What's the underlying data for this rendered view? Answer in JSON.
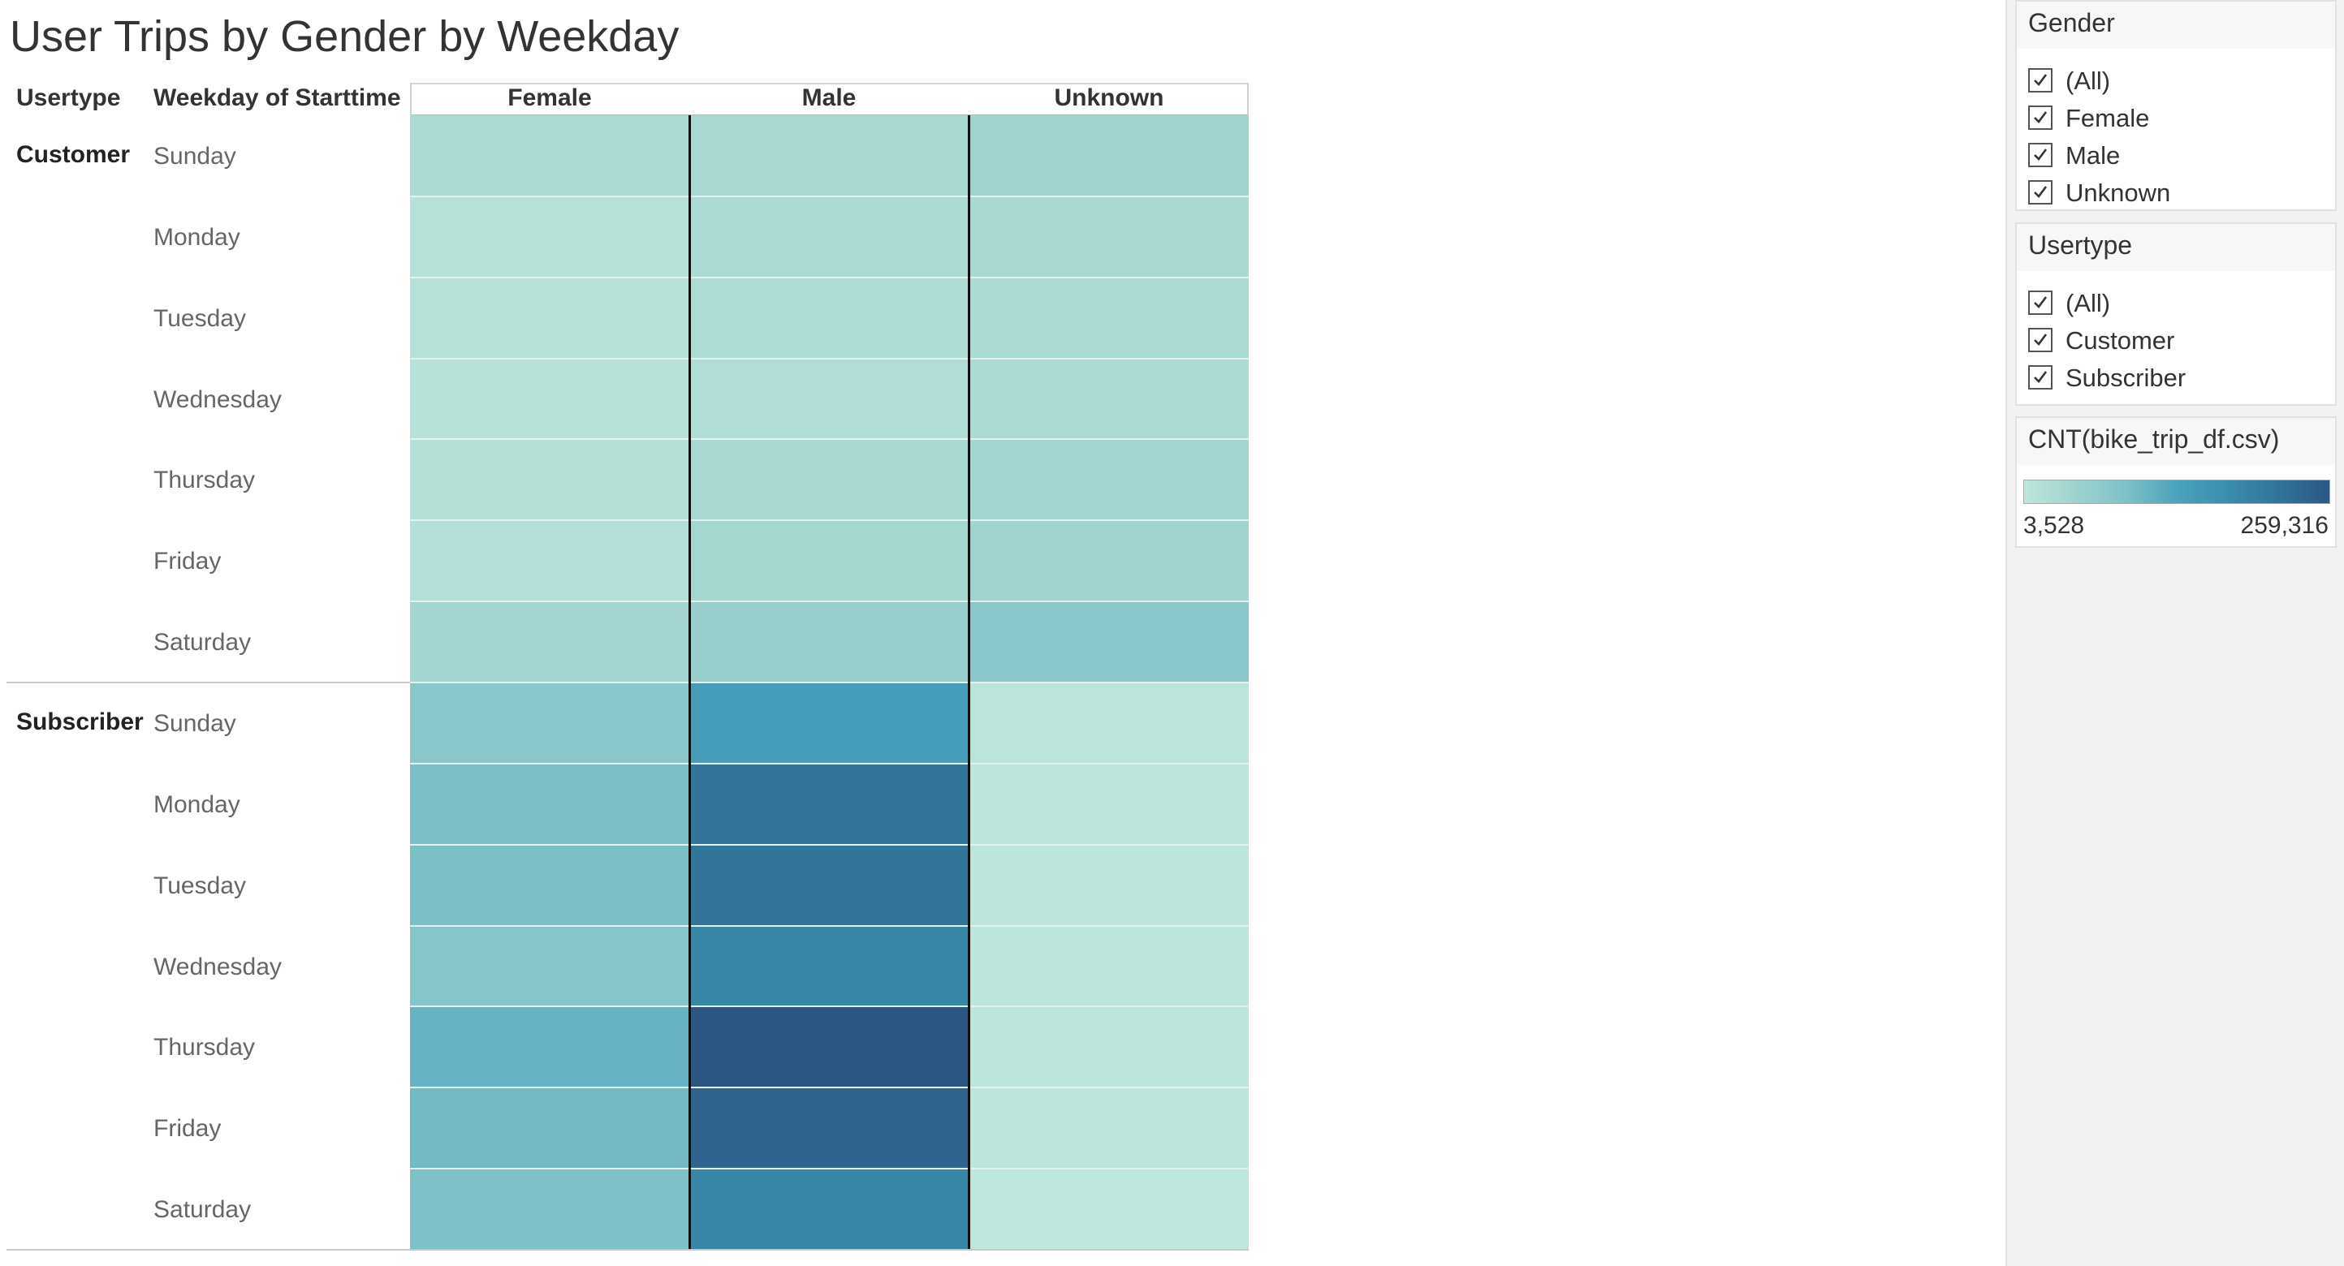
{
  "title": "User Trips by Gender by Weekday",
  "row_headers": {
    "usertype": "Usertype",
    "weekday": "Weekday of Starttime"
  },
  "colors": {
    "scale_min": "#bde6dc",
    "scale_max": "#2b5784",
    "divider_dark": "#111111"
  },
  "chart_data": {
    "type": "heatmap",
    "title": "User Trips by Gender by Weekday",
    "columns": [
      "Female",
      "Male",
      "Unknown"
    ],
    "row_groups": [
      {
        "name": "Customer",
        "days": [
          "Sunday",
          "Monday",
          "Tuesday",
          "Wednesday",
          "Thursday",
          "Friday",
          "Saturday"
        ],
        "values": [
          [
            30000,
            35000,
            45000
          ],
          [
            15000,
            28000,
            32000
          ],
          [
            14000,
            26000,
            30000
          ],
          [
            12000,
            22000,
            28000
          ],
          [
            16000,
            32000,
            40000
          ],
          [
            18000,
            38000,
            44000
          ],
          [
            40000,
            55000,
            75000
          ]
        ]
      },
      {
        "name": "Subscriber",
        "days": [
          "Sunday",
          "Monday",
          "Tuesday",
          "Wednesday",
          "Thursday",
          "Friday",
          "Saturday"
        ],
        "values": [
          [
            75000,
            145000,
            6000
          ],
          [
            92000,
            215000,
            5000
          ],
          [
            92000,
            215000,
            5000
          ],
          [
            80000,
            185000,
            5000
          ],
          [
            110000,
            259316,
            5000
          ],
          [
            100000,
            240000,
            4500
          ],
          [
            90000,
            185000,
            3528
          ]
        ]
      }
    ],
    "color_scale": {
      "label": "CNT(bike_trip_df.csv)",
      "min": 3528,
      "max": 259316,
      "min_label": "3,528",
      "max_label": "259,316"
    }
  },
  "filters": {
    "gender": {
      "title": "Gender",
      "options": [
        {
          "label": "(All)",
          "checked": true
        },
        {
          "label": "Female",
          "checked": true
        },
        {
          "label": "Male",
          "checked": true
        },
        {
          "label": "Unknown",
          "checked": true
        }
      ]
    },
    "usertype": {
      "title": "Usertype",
      "options": [
        {
          "label": "(All)",
          "checked": true
        },
        {
          "label": "Customer",
          "checked": true
        },
        {
          "label": "Subscriber",
          "checked": true
        }
      ]
    }
  }
}
